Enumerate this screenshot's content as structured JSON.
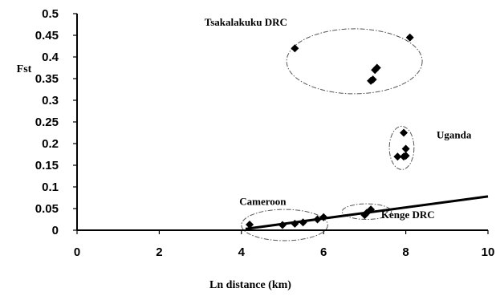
{
  "chart_data": {
    "type": "scatter",
    "title": "",
    "xlabel": "Ln distance (km)",
    "ylabel": "Fst",
    "xlim": [
      0,
      10
    ],
    "ylim": [
      0,
      0.5
    ],
    "x_ticks": [
      0,
      2,
      4,
      6,
      8,
      10
    ],
    "x_tick_labels": [
      "0",
      "2",
      "4",
      "6",
      "8",
      "10"
    ],
    "y_ticks": [
      0,
      0.05,
      0.1,
      0.15,
      0.2,
      0.25,
      0.3,
      0.35,
      0.4,
      0.45,
      0.5
    ],
    "y_tick_labels": [
      "0",
      "0.05",
      "0.1",
      "0.15",
      "0.2",
      "0.25",
      "0.3",
      "0.35",
      "0.4",
      "0.45",
      "0.5"
    ],
    "grid": false,
    "legend": "none",
    "points": [
      {
        "x": 4.2,
        "y": 0.013
      },
      {
        "x": 5.0,
        "y": 0.012
      },
      {
        "x": 5.3,
        "y": 0.015
      },
      {
        "x": 5.5,
        "y": 0.018
      },
      {
        "x": 5.85,
        "y": 0.025
      },
      {
        "x": 6.0,
        "y": 0.03
      },
      {
        "x": 7.0,
        "y": 0.035
      },
      {
        "x": 7.05,
        "y": 0.04
      },
      {
        "x": 7.15,
        "y": 0.048
      },
      {
        "x": 5.3,
        "y": 0.42
      },
      {
        "x": 7.15,
        "y": 0.345
      },
      {
        "x": 7.2,
        "y": 0.348
      },
      {
        "x": 7.25,
        "y": 0.37
      },
      {
        "x": 7.3,
        "y": 0.375
      },
      {
        "x": 8.1,
        "y": 0.445
      },
      {
        "x": 7.8,
        "y": 0.17
      },
      {
        "x": 7.95,
        "y": 0.17
      },
      {
        "x": 8.0,
        "y": 0.172
      },
      {
        "x": 8.0,
        "y": 0.188
      },
      {
        "x": 7.95,
        "y": 0.225
      }
    ],
    "trendline": {
      "x": [
        4.1,
        10
      ],
      "y": [
        0.003,
        0.078
      ]
    },
    "groups": [
      {
        "label": "Tsakalakuku DRC",
        "cx": 6.75,
        "cy": 0.39,
        "rx": 1.65,
        "ry": 0.075
      },
      {
        "label": "Uganda",
        "cx": 7.9,
        "cy": 0.19,
        "rx": 0.3,
        "ry": 0.05
      },
      {
        "label": "Cameroon",
        "cx": 5.05,
        "cy": 0.012,
        "rx": 1.05,
        "ry": 0.036
      },
      {
        "label": "Kenge DRC",
        "cx": 7.05,
        "cy": 0.043,
        "rx": 0.6,
        "ry": 0.018
      }
    ],
    "group_label_positions": [
      {
        "x": 3.1,
        "y": 0.472
      },
      {
        "x": 8.75,
        "y": 0.212
      },
      {
        "x": 3.95,
        "y": 0.058
      },
      {
        "x": 7.4,
        "y": 0.028
      }
    ]
  }
}
